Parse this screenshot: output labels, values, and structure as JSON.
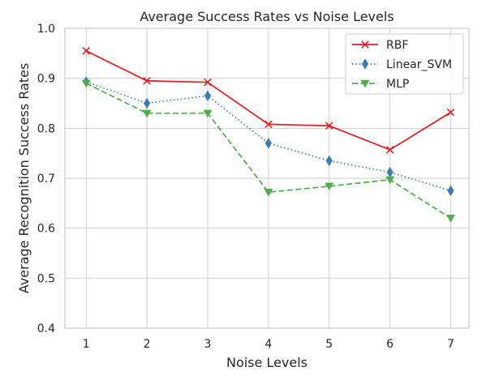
{
  "chart_data": {
    "type": "line",
    "title": "Average Success Rates vs Noise Levels",
    "xlabel": "Noise Levels",
    "ylabel": "Average Recognition Success Rates",
    "x": [
      1,
      2,
      3,
      4,
      5,
      6,
      7
    ],
    "xlim": [
      0.65,
      7.3
    ],
    "ylim": [
      0.4,
      1.0
    ],
    "y_ticks": [
      0.4,
      0.5,
      0.6,
      0.7,
      0.8,
      0.9,
      1.0
    ],
    "y_tick_labels": [
      "0.4",
      "0.5",
      "0.6",
      "0.7",
      "0.8",
      "0.9",
      "1.0"
    ],
    "x_tick_labels": [
      "1",
      "2",
      "3",
      "4",
      "5",
      "6",
      "7"
    ],
    "grid": true,
    "legend_position": "top-right",
    "series": [
      {
        "name": "RBF",
        "values": [
          0.955,
          0.895,
          0.892,
          0.808,
          0.805,
          0.757,
          0.832
        ],
        "color": "#e41a1c",
        "line_style": "solid",
        "marker": "x"
      },
      {
        "name": "Linear_SVM",
        "values": [
          0.893,
          0.85,
          0.865,
          0.77,
          0.735,
          0.712,
          0.675
        ],
        "color": "#377eb8",
        "line_style": "dotted",
        "marker": "thin_diamond"
      },
      {
        "name": "MLP",
        "values": [
          0.89,
          0.83,
          0.83,
          0.672,
          0.684,
          0.697,
          0.62
        ],
        "color": "#4daf4a",
        "line_style": "dashed",
        "marker": "triangle_down"
      }
    ]
  }
}
